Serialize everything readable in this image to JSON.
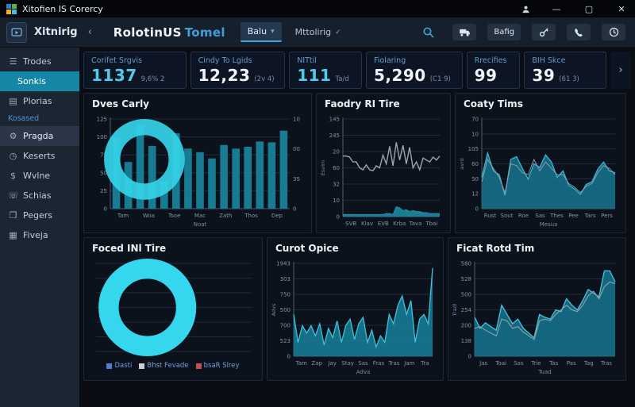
{
  "window": {
    "title": "Xitofien IS Corercy",
    "controls": {
      "minimize": "—",
      "maximize": "▢",
      "close": "✕"
    }
  },
  "header": {
    "app_name": "Xitnirig",
    "collapse_icon": "‹",
    "title": "RolotinUS",
    "title_accent": "Tomel",
    "tabs": [
      {
        "label": "Balu",
        "caret": "▾",
        "active": true
      },
      {
        "label": "Mttolirig",
        "caret": "✓",
        "active": false
      }
    ],
    "action_button_label": "Bafig"
  },
  "icon_glyphs": {
    "menu": "☰",
    "book": "▤",
    "wrench": "⚙",
    "clock": "◷",
    "dollar": "$",
    "phone": "☏",
    "pages": "❒",
    "file": "▦",
    "chevron_right": "›"
  },
  "sidebar": {
    "items": [
      {
        "label": "Trodes",
        "icon": "menu",
        "type": "item"
      },
      {
        "label": "Sonkis",
        "type": "subitem",
        "active": true
      },
      {
        "label": "Plorias",
        "icon": "book",
        "type": "item"
      },
      {
        "label": "Kosased",
        "type": "section"
      },
      {
        "label": "Pragda",
        "icon": "wrench",
        "type": "item",
        "highlighted": true
      },
      {
        "label": "Keserts",
        "icon": "clock",
        "type": "item"
      },
      {
        "label": "Wvlne",
        "icon": "dollar",
        "type": "item"
      },
      {
        "label": "Schias",
        "icon": "phone",
        "type": "item"
      },
      {
        "label": "Pegers",
        "icon": "pages",
        "type": "item"
      },
      {
        "label": "Fiveja",
        "icon": "file",
        "type": "item"
      }
    ]
  },
  "kpis": [
    {
      "label": "Corifet Srgvis",
      "value": "1137",
      "sub": "9,6% 2",
      "accent": true
    },
    {
      "label": "Cindy To Lgids",
      "value": "12,23",
      "sub": "(2v 4)",
      "accent": false
    },
    {
      "label": "NITtil",
      "value": "111",
      "sub": "Ta/d",
      "accent": true
    },
    {
      "label": "Fiolaring",
      "value": "5,290",
      "sub": "(C1 9)",
      "accent": false
    },
    {
      "label": "Rrecifies",
      "value": "99",
      "sub": "",
      "accent": false
    },
    {
      "label": "BIH Skce",
      "value": "39",
      "sub": "(61 3)",
      "accent": false
    }
  ],
  "chart_data": [
    {
      "type": "bar",
      "title": "Dves Carly",
      "values": [
        79,
        52,
        93,
        70,
        30,
        84,
        67,
        63,
        56,
        71,
        67,
        69,
        75,
        74,
        87
      ],
      "bar_color": "#177b93",
      "overlay_ring": "#35d3e8",
      "yticks": [
        "125",
        "100",
        "75",
        "50",
        "25",
        "0"
      ],
      "right_ticks": [
        "10",
        "00",
        "35",
        "0"
      ],
      "xticks": [
        "Tam",
        "Woa",
        "Tsoe",
        "Mac",
        "Zath",
        "Thos",
        "Dep"
      ],
      "xlabel": "Noat",
      "ylim": [
        0,
        125
      ]
    },
    {
      "type": "line",
      "title": "Faodry RI Tire",
      "series": [
        {
          "values": [
            62,
            62,
            61,
            56,
            56,
            50,
            48,
            53,
            48,
            47,
            52,
            50,
            63,
            54,
            72,
            52,
            76,
            58,
            73,
            54,
            71,
            50,
            56,
            48,
            60,
            58,
            56,
            61,
            58,
            62
          ],
          "color": "#9aa4b2",
          "width": 1.4
        },
        {
          "values": [
            2,
            2,
            2,
            2,
            2,
            2,
            2,
            2,
            2,
            2,
            2,
            2,
            2,
            3,
            3,
            2,
            10,
            9,
            6,
            7,
            5,
            6,
            5,
            5,
            4,
            4,
            3,
            3,
            3,
            3
          ],
          "color": "#1a89a3",
          "fill": true,
          "fill_opacity": 0.9
        }
      ],
      "yticks": [
        "145",
        "245",
        "20",
        "60",
        "32",
        "10",
        "0"
      ],
      "xticks": [
        "SVB",
        "Klav",
        "EVB",
        "Krba",
        "Tava",
        "Tbai"
      ],
      "ylabel": "Esvim",
      "ylim": [
        0,
        100
      ]
    },
    {
      "type": "area",
      "title": "Coaty Tims",
      "series": [
        {
          "values": [
            35,
            62,
            42,
            38,
            15,
            55,
            58,
            45,
            33,
            50,
            46,
            60,
            52,
            35,
            42,
            26,
            22,
            16,
            27,
            30,
            44,
            52,
            42,
            40
          ],
          "color": "#15768e",
          "stroke": "#35b9d4",
          "fill": true,
          "fill_opacity": 0.85
        },
        {
          "values": [
            30,
            55,
            45,
            35,
            18,
            50,
            48,
            40,
            38,
            55,
            42,
            52,
            45,
            38,
            38,
            28,
            24,
            18,
            25,
            28,
            40,
            48,
            45,
            38
          ],
          "color": "#8e98a6",
          "width": 1
        }
      ],
      "yticks": [
        "70",
        "10",
        "105",
        "60",
        "50",
        "12",
        "0"
      ],
      "xticks": [
        "Rust",
        "Sout",
        "Roe",
        "Sas",
        "Thes",
        "Pee",
        "Tars",
        "Pers"
      ],
      "xlabel": "Mesua",
      "ylabel": "avrd",
      "ylim": [
        0,
        70
      ]
    },
    {
      "type": "donut",
      "title": "Foced INl Tire",
      "ring_color": "#35d7ee",
      "yticks": [
        "",
        "",
        "",
        "",
        "",
        "",
        ""
      ],
      "legend": [
        {
          "label": "Dasti",
          "color": "#4a7fd4"
        },
        {
          "label": "Bhst Fevade",
          "color": "#c9ced6"
        },
        {
          "label": "bsaR Slrey",
          "color": "#c0504d"
        }
      ]
    },
    {
      "type": "area",
      "title": "Curot Opice",
      "series": [
        {
          "values": [
            45,
            15,
            33,
            25,
            33,
            22,
            35,
            12,
            30,
            20,
            38,
            15,
            33,
            40,
            18,
            35,
            42,
            15,
            28,
            10,
            22,
            15,
            45,
            35,
            55,
            65,
            45,
            60,
            15,
            40,
            45,
            35,
            95
          ],
          "color": "#17809a",
          "stroke": "#3fc3dc",
          "fill": true,
          "fill_opacity": 0.85
        }
      ],
      "yticks": [
        "1943",
        "303",
        "750",
        "500",
        "700",
        "523",
        "0"
      ],
      "xticks": [
        "Tam",
        "Zap",
        "Jay",
        "Stay",
        "Sas",
        "Fras",
        "Tras",
        "Jam",
        "Tra"
      ],
      "xlabel": "Adva",
      "ylabel": "Advs",
      "ylim": [
        0,
        1943
      ]
    },
    {
      "type": "area",
      "title": "Ficat Rotd Tim",
      "series": [
        {
          "values": [
            42,
            30,
            36,
            32,
            28,
            55,
            45,
            35,
            40,
            30,
            25,
            20,
            45,
            42,
            40,
            50,
            48,
            62,
            55,
            50,
            60,
            72,
            68,
            64,
            92,
            92,
            80
          ],
          "color": "#15768e",
          "stroke": "#43c6de",
          "fill": true,
          "fill_opacity": 0.85
        },
        {
          "values": [
            30,
            32,
            28,
            25,
            22,
            40,
            38,
            30,
            32,
            26,
            22,
            18,
            38,
            40,
            38,
            45,
            50,
            55,
            50,
            48,
            55,
            65,
            70,
            62,
            75,
            80,
            78
          ],
          "color": "#95a0ad",
          "width": 1.1
        }
      ],
      "yticks": [
        "560",
        "528",
        "500",
        "254",
        "200",
        "138",
        "0"
      ],
      "xticks": [
        "Jas",
        "Toai",
        "Sas",
        "Trie",
        "Tas",
        "Pas",
        "Tag",
        "Tras"
      ],
      "xlabel": "Tuad",
      "ylabel": "Tradl",
      "ylim": [
        0,
        560
      ]
    }
  ]
}
